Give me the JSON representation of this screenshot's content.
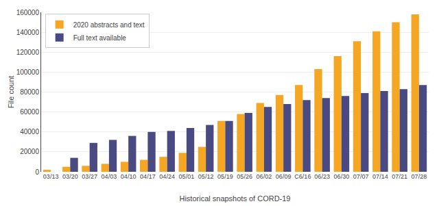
{
  "chart_data": {
    "type": "bar",
    "xlabel": "Historical snapshots of CORD-19",
    "ylabel": "File count",
    "categories": [
      "03/13",
      "03/20",
      "03/27",
      "04/03",
      "04/10",
      "04/17",
      "04/24",
      "05/01",
      "05/12",
      "05/19",
      "05/26",
      "06/02",
      "06/09",
      "C6/16",
      "06/23",
      "06/30",
      "07/07",
      "07/14",
      "07/21",
      "07/28"
    ],
    "series": [
      {
        "name": "2020 abstracts and text",
        "color": "#F5A623",
        "values": [
          2000,
          5000,
          6000,
          8000,
          10000,
          12000,
          15000,
          19000,
          25000,
          51000,
          58000,
          69000,
          77000,
          87000,
          103000,
          116000,
          131000,
          141000,
          150000,
          158000
        ]
      },
      {
        "name": "Full text available",
        "color": "#4A4A82",
        "values": [
          0,
          14000,
          29000,
          32000,
          36000,
          40000,
          41000,
          44000,
          47000,
          51000,
          59000,
          65000,
          68000,
          72000,
          74000,
          76000,
          79000,
          81000,
          83000,
          87000
        ]
      }
    ],
    "ylim": [
      0,
      160000
    ],
    "yticks": [
      0,
      20000,
      40000,
      60000,
      80000,
      100000,
      120000,
      140000,
      160000
    ],
    "grid": true,
    "legend": "upper left"
  }
}
